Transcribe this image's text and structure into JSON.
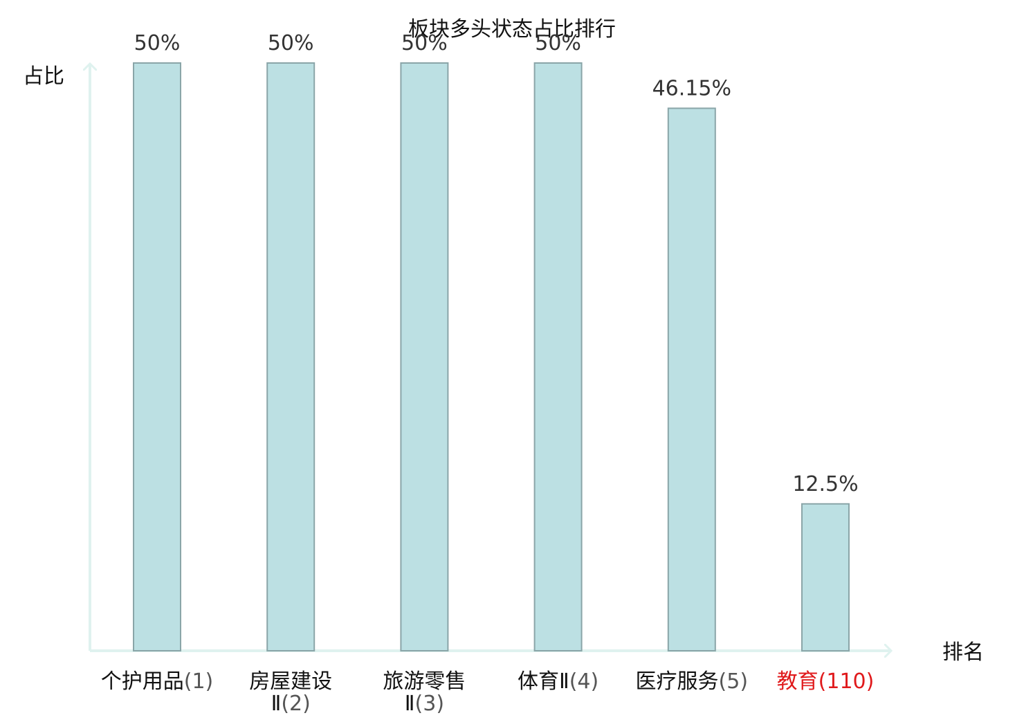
{
  "chart_data": {
    "type": "bar",
    "title": "板块多头状态占比排行",
    "ylabel": "占比",
    "xlabel": "排名",
    "ylim": [
      0,
      50
    ],
    "grid": false,
    "categories": [
      {
        "name_lines": [
          "个护用品"
        ],
        "rank": "(1)",
        "full": "个护用品(1)",
        "highlight": false
      },
      {
        "name_lines": [
          "房屋建设",
          "Ⅱ"
        ],
        "rank": "(2)",
        "full": "房屋建设Ⅱ(2)",
        "highlight": false
      },
      {
        "name_lines": [
          "旅游零售",
          "Ⅱ"
        ],
        "rank": "(3)",
        "full": "旅游零售Ⅱ(3)",
        "highlight": false
      },
      {
        "name_lines": [
          "体育Ⅱ"
        ],
        "rank": "(4)",
        "full": "体育Ⅱ(4)",
        "highlight": false
      },
      {
        "name_lines": [
          "医疗服务"
        ],
        "rank": "(5)",
        "full": "医疗服务(5)",
        "highlight": false
      },
      {
        "name_lines": [
          "教育"
        ],
        "rank": "(110)",
        "full": "教育(110)",
        "highlight": true
      }
    ],
    "values": [
      50,
      50,
      50,
      50,
      46.15,
      12.5
    ],
    "value_labels": [
      "50%",
      "50%",
      "50%",
      "50%",
      "46.15%",
      "12.5%"
    ],
    "colors": {
      "bar_fill": "#bce0e3",
      "bar_edge": "#8aa5a8",
      "axis": "#dff2ef",
      "highlight_text": "#e0191b"
    }
  }
}
